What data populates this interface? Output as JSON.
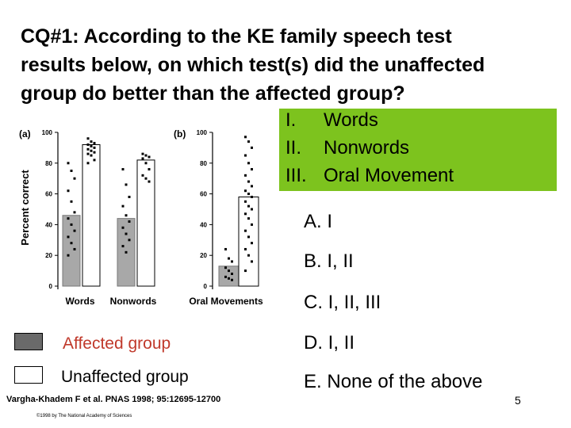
{
  "question": {
    "line1": "CQ#1: According to the KE family speech test",
    "line2": "results below, on which test(s) did the unaffected",
    "line3": "group do better than the affected group?"
  },
  "options": [
    {
      "num": "I.",
      "text": "Words"
    },
    {
      "num": "II.",
      "text": "Nonwords"
    },
    {
      "num": "III.",
      "text": "Oral Movement"
    }
  ],
  "answers": [
    {
      "letter": "A.",
      "text": "I"
    },
    {
      "letter": "B.",
      "text": "I, II"
    },
    {
      "letter": "C.",
      "text": "I, II, III"
    },
    {
      "letter": "D.",
      "text": "I, II"
    },
    {
      "letter": "E.",
      "text": " None of the above"
    }
  ],
  "legend": {
    "affected": "Affected group",
    "unaffected": "Unaffected group",
    "affected_color": "#6a6a6a",
    "affected_label_color": "#c0392b"
  },
  "citation": "Vargha-Khadem F et al. PNAS 1998; 95:12695-12700",
  "copyright": "©1998 by The National Academy of Sciences",
  "page_number": "5",
  "chart_data": [
    {
      "type": "bar",
      "panel": "(a)",
      "ylabel": "Percent correct",
      "ylim": [
        0,
        100
      ],
      "yticks": [
        0,
        20,
        40,
        60,
        80,
        100
      ],
      "categories": [
        "Words",
        "Nonwords"
      ],
      "series": [
        {
          "values": [
            46,
            44
          ],
          "points": [
            [
              80,
              75,
              70,
              62,
              55,
              48,
              44,
              40,
              36,
              32,
              28,
              24,
              20
            ],
            [
              76,
              66,
              58,
              52,
              46,
              42,
              38,
              34,
              30,
              26,
              22
            ]
          ]
        },
        {
          "values": [
            92,
            82
          ],
          "points": [
            [
              96,
              94,
              93,
              92,
              91,
              90,
              89,
              88,
              87,
              86,
              85,
              82,
              80
            ],
            [
              86,
              85,
              84,
              83,
              80,
              76,
              72,
              70,
              68
            ]
          ]
        }
      ]
    },
    {
      "type": "bar",
      "panel": "(b)",
      "ylim": [
        0,
        100
      ],
      "yticks": [
        0,
        20,
        40,
        60,
        80,
        100
      ],
      "categories": [
        "Oral Movements"
      ],
      "series": [
        {
          "values": [
            13
          ],
          "points": [
            [
              24,
              18,
              16,
              12,
              10,
              8,
              6,
              5,
              4
            ]
          ]
        },
        {
          "values": [
            58
          ],
          "points": [
            [
              97,
              94,
              90,
              85,
              80,
              76,
              72,
              68,
              65,
              62,
              60,
              58,
              55,
              52,
              50,
              47,
              44,
              40,
              36,
              32,
              28,
              24,
              20,
              16,
              10
            ]
          ]
        }
      ]
    }
  ]
}
